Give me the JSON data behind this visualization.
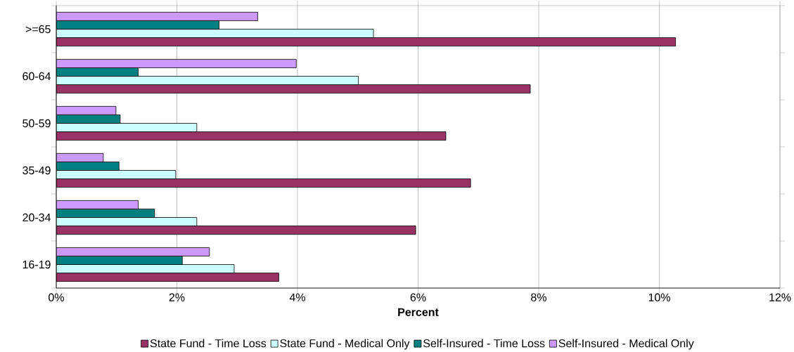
{
  "chart_data": {
    "type": "bar",
    "orientation": "horizontal",
    "xlabel": "Percent",
    "categories": [
      ">=65",
      "60-64",
      "50-59",
      "35-49",
      "20-34",
      "16-19"
    ],
    "series": [
      {
        "name": "State Fund - Time Loss",
        "color": "#993366",
        "values": [
          10.27,
          7.86,
          6.46,
          6.87,
          5.96,
          3.69
        ]
      },
      {
        "name": "State Fund - Medical Only",
        "color": "#ccffff",
        "values": [
          5.26,
          5.01,
          2.33,
          1.98,
          2.33,
          2.95
        ]
      },
      {
        "name": "Self-Insured - Time Loss",
        "color": "#008080",
        "values": [
          2.7,
          1.36,
          1.06,
          1.04,
          1.63,
          2.09
        ]
      },
      {
        "name": "Self-Insured - Medical Only",
        "color": "#cc99ff",
        "values": [
          3.34,
          3.98,
          0.99,
          0.78,
          1.36,
          2.54
        ]
      }
    ],
    "xlim": [
      0,
      12
    ],
    "xticks": [
      {
        "value": 0,
        "label": "0%"
      },
      {
        "value": 2,
        "label": "2%"
      },
      {
        "value": 4,
        "label": "4%"
      },
      {
        "value": 6,
        "label": "6%"
      },
      {
        "value": 8,
        "label": "8%"
      },
      {
        "value": 10,
        "label": "10%"
      },
      {
        "value": 12,
        "label": "12%"
      }
    ],
    "grid": "x",
    "legend": "bottom"
  }
}
